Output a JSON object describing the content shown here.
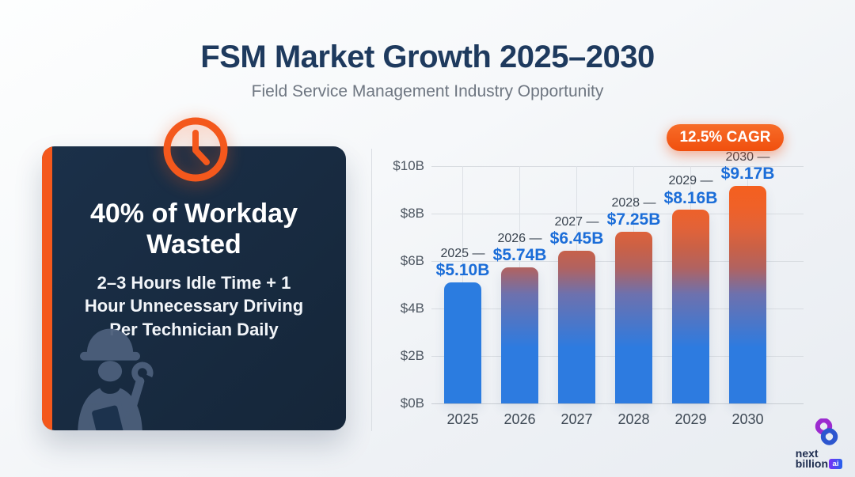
{
  "page": {
    "title": "FSM Market Growth 2025–2030",
    "subtitle": "Field Service Management Industry Opportunity"
  },
  "stat_card": {
    "headline": "40% of Workday Wasted",
    "description": "2–3 Hours Idle Time + 1 Hour Unnecessary Driving Per Technician Daily",
    "colors": {
      "background": "#17293F",
      "accent_stripe": "#F4581C",
      "text": "#FFFFFF",
      "watermark_icon": "#4C5F7B"
    }
  },
  "chart_data": {
    "type": "bar",
    "badge": "12.5% CAGR",
    "categories": [
      "2025",
      "2026",
      "2027",
      "2028",
      "2029",
      "2030"
    ],
    "values": [
      5.1,
      5.74,
      6.45,
      7.25,
      8.16,
      9.17
    ],
    "value_labels": [
      "$5.10B",
      "$5.74B",
      "$6.45B",
      "$7.25B",
      "$8.16B",
      "$9.17B"
    ],
    "year_label_suffix": "—",
    "y_ticks": [
      "$10B",
      "$8B",
      "$6B",
      "$4B",
      "$2B",
      "$0B"
    ],
    "ylim": [
      0,
      10
    ],
    "grid": true,
    "legend": false,
    "colors": {
      "highlight_bar": "#2B7CE0",
      "gradient_top": "#F4601F",
      "gradient_bottom": "#2D7BE0",
      "value_label": "#1B6DD8",
      "badge": "#F4581C"
    }
  },
  "logo": {
    "line1": "next",
    "line2": "billion",
    "badge": "ai"
  }
}
